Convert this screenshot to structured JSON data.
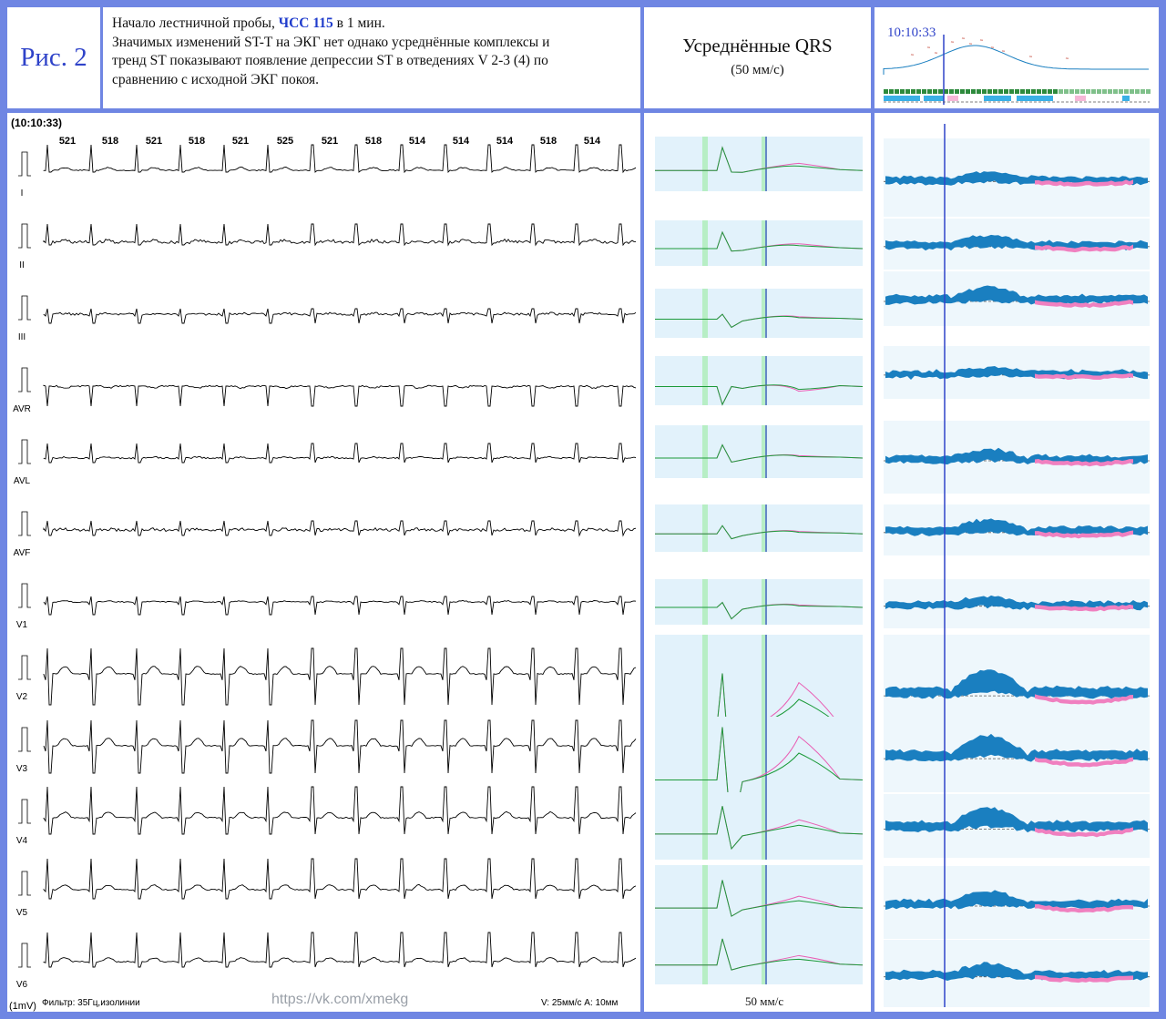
{
  "figure": {
    "label": "Рис. 2"
  },
  "description": {
    "intro": "Начало лестничной пробы,",
    "hr_label": "ЧСС 115",
    "intro_end": "в 1 мин.",
    "line2": "Значимых изменений ST-T на ЭКГ нет однако усреднённые комплексы и",
    "line3": "тренд ST показывают появление депрессии ST в отведениях V 2-3 (4) по",
    "line4": "сравнению с исходной ЭКГ покоя."
  },
  "averaged": {
    "title": "Усреднённые QRS",
    "speed": "(50 мм/с)",
    "footer_speed": "50 мм/с"
  },
  "trend": {
    "time": "10:10:33"
  },
  "ecg": {
    "timestamp": "(10:10:33)",
    "rr_intervals": [
      "521",
      "518",
      "521",
      "518",
      "521",
      "525",
      "521",
      "518",
      "514",
      "514",
      "514",
      "518",
      "514"
    ],
    "leads": [
      "I",
      "II",
      "III",
      "AVR",
      "AVL",
      "AVF",
      "V1",
      "V2",
      "V3",
      "V4",
      "V5",
      "V6"
    ],
    "calibration": "(1mV)",
    "filter": "Фильтр: 35Гц,изолинии",
    "speed_amp": "V: 25мм/с  A: 10мм",
    "watermark": "https://vk.com/xmekg"
  },
  "colors": {
    "accent": "#2f43c9",
    "current": "#1c9a3a",
    "baseline": "#e95fb4",
    "trend_blue": "#1a7fc0",
    "trend_pink": "#f080c0"
  }
}
